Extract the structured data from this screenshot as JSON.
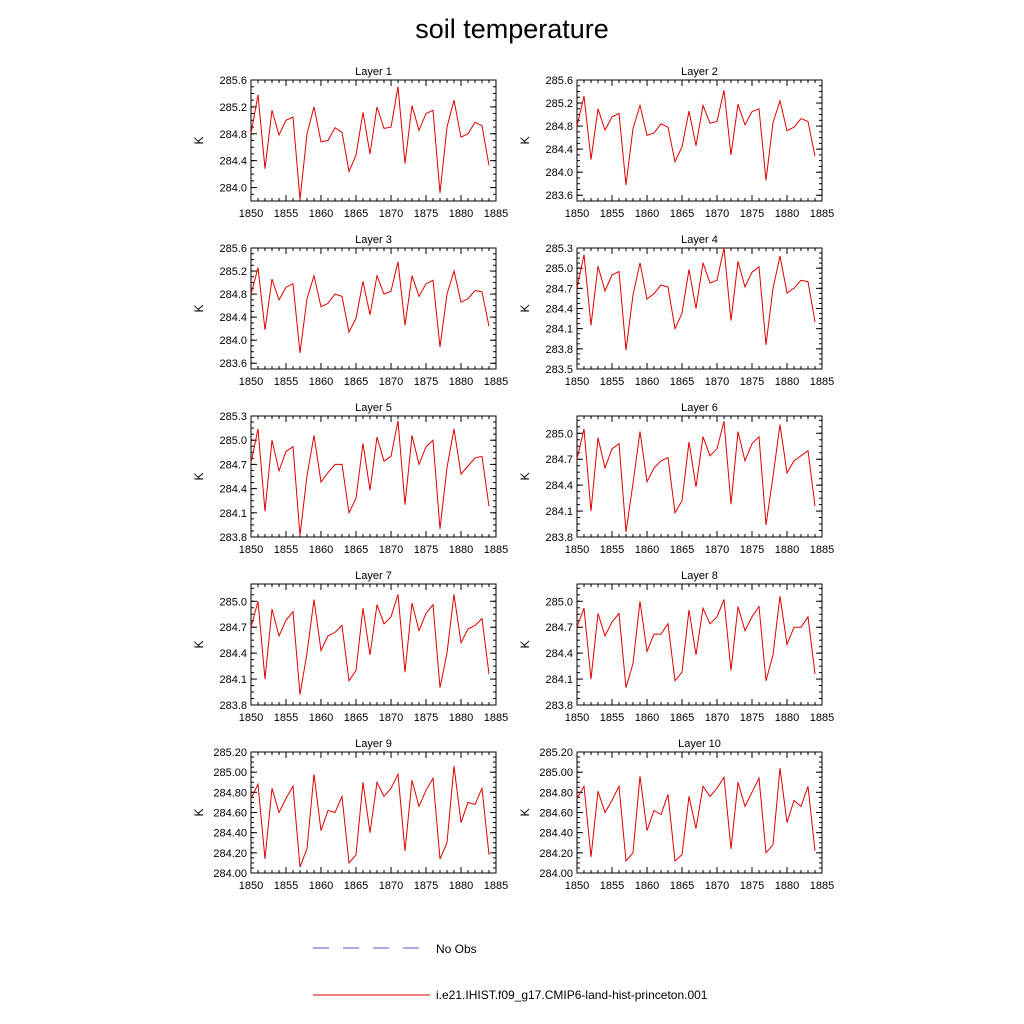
{
  "title": "soil temperature",
  "colors": {
    "model_line": "#e00000",
    "obs_line": "#5555cc",
    "axis": "#000000"
  },
  "legend": [
    {
      "label": "No Obs",
      "style": "dashed",
      "color": "#5555cc"
    },
    {
      "label": "i.e21.IHIST.f09_g17.CMIP6-land-hist-princeton.001",
      "style": "solid",
      "color": "#e00000"
    }
  ],
  "chart_data": [
    {
      "type": "line",
      "title": "Layer 1",
      "ylabel": "K",
      "xlim": [
        1850,
        1885
      ],
      "ylim": [
        283.8,
        285.6
      ],
      "xticks": [
        "1850",
        "1855",
        "1860",
        "1865",
        "1870",
        "1875",
        "1880",
        "1885"
      ],
      "yticks": [
        "284.0",
        "284.4",
        "284.8",
        "285.2",
        "285.6"
      ],
      "x": [
        1850,
        1851,
        1852,
        1853,
        1854,
        1855,
        1856,
        1857,
        1858,
        1859,
        1860,
        1861,
        1862,
        1863,
        1864,
        1865,
        1866,
        1867,
        1868,
        1869,
        1870,
        1871,
        1872,
        1873,
        1874,
        1875,
        1876,
        1877,
        1878,
        1879,
        1880,
        1881,
        1882,
        1883,
        1884
      ],
      "series": [
        {
          "values": [
            284.8,
            285.38,
            284.28,
            285.15,
            284.78,
            285.0,
            285.05,
            283.82,
            284.8,
            285.2,
            284.68,
            284.7,
            284.89,
            284.82,
            284.24,
            284.48,
            285.12,
            284.5,
            285.2,
            284.88,
            284.9,
            285.5,
            284.36,
            285.22,
            284.85,
            285.1,
            285.15,
            283.92,
            284.9,
            285.3,
            284.75,
            284.8,
            284.97,
            284.92,
            284.33
          ]
        }
      ]
    },
    {
      "type": "line",
      "title": "Layer 2",
      "ylabel": "K",
      "xlim": [
        1850,
        1885
      ],
      "ylim": [
        283.5,
        285.6
      ],
      "xticks": [
        "1850",
        "1855",
        "1860",
        "1865",
        "1870",
        "1875",
        "1880",
        "1885"
      ],
      "yticks": [
        "283.6",
        "284.0",
        "284.4",
        "284.8",
        "285.2",
        "285.6"
      ],
      "x": [
        1850,
        1851,
        1852,
        1853,
        1854,
        1855,
        1856,
        1857,
        1858,
        1859,
        1860,
        1861,
        1862,
        1863,
        1864,
        1865,
        1866,
        1867,
        1868,
        1869,
        1870,
        1871,
        1872,
        1873,
        1874,
        1875,
        1876,
        1877,
        1878,
        1879,
        1880,
        1881,
        1882,
        1883,
        1884
      ],
      "series": [
        {
          "values": [
            284.8,
            285.32,
            284.22,
            285.1,
            284.73,
            284.96,
            285.02,
            283.78,
            284.76,
            285.16,
            284.64,
            284.68,
            284.84,
            284.78,
            284.18,
            284.44,
            285.06,
            284.46,
            285.16,
            284.85,
            284.88,
            285.42,
            284.3,
            285.18,
            284.82,
            285.05,
            285.1,
            283.86,
            284.86,
            285.24,
            284.72,
            284.78,
            284.93,
            284.88,
            284.28
          ]
        }
      ]
    },
    {
      "type": "line",
      "title": "Layer 3",
      "ylabel": "K",
      "xlim": [
        1850,
        1885
      ],
      "ylim": [
        283.5,
        285.6
      ],
      "xticks": [
        "1850",
        "1855",
        "1860",
        "1865",
        "1870",
        "1875",
        "1880",
        "1885"
      ],
      "yticks": [
        "283.6",
        "284.0",
        "284.4",
        "284.8",
        "285.2",
        "285.6"
      ],
      "x": [
        1850,
        1851,
        1852,
        1853,
        1854,
        1855,
        1856,
        1857,
        1858,
        1859,
        1860,
        1861,
        1862,
        1863,
        1864,
        1865,
        1866,
        1867,
        1868,
        1869,
        1870,
        1871,
        1872,
        1873,
        1874,
        1875,
        1876,
        1877,
        1878,
        1879,
        1880,
        1881,
        1882,
        1883,
        1884
      ],
      "series": [
        {
          "values": [
            284.8,
            285.26,
            284.18,
            285.06,
            284.7,
            284.92,
            284.98,
            283.78,
            284.72,
            285.12,
            284.58,
            284.64,
            284.8,
            284.76,
            284.14,
            284.38,
            285.02,
            284.44,
            285.12,
            284.8,
            284.85,
            285.36,
            284.26,
            285.12,
            284.76,
            284.98,
            285.04,
            283.88,
            284.8,
            285.2,
            284.66,
            284.72,
            284.86,
            284.84,
            284.24
          ]
        }
      ]
    },
    {
      "type": "line",
      "title": "Layer 4",
      "ylabel": "K",
      "xlim": [
        1850,
        1885
      ],
      "ylim": [
        283.5,
        285.3
      ],
      "xticks": [
        "1850",
        "1855",
        "1860",
        "1865",
        "1870",
        "1875",
        "1880",
        "1885"
      ],
      "yticks": [
        "283.5",
        "283.8",
        "284.1",
        "284.4",
        "284.7",
        "285.0",
        "285.3"
      ],
      "x": [
        1850,
        1851,
        1852,
        1853,
        1854,
        1855,
        1856,
        1857,
        1858,
        1859,
        1860,
        1861,
        1862,
        1863,
        1864,
        1865,
        1866,
        1867,
        1868,
        1869,
        1870,
        1871,
        1872,
        1873,
        1874,
        1875,
        1876,
        1877,
        1878,
        1879,
        1880,
        1881,
        1882,
        1883,
        1884
      ],
      "series": [
        {
          "values": [
            284.7,
            285.2,
            284.15,
            285.03,
            284.66,
            284.9,
            284.95,
            283.78,
            284.6,
            285.08,
            284.54,
            284.62,
            284.75,
            284.72,
            284.1,
            284.33,
            284.98,
            284.4,
            285.08,
            284.78,
            284.82,
            285.3,
            284.22,
            285.1,
            284.72,
            284.94,
            285.02,
            283.86,
            284.7,
            285.18,
            284.63,
            284.7,
            284.82,
            284.8,
            284.2
          ]
        }
      ]
    },
    {
      "type": "line",
      "title": "Layer 5",
      "ylabel": "K",
      "xlim": [
        1850,
        1885
      ],
      "ylim": [
        283.8,
        285.3
      ],
      "xticks": [
        "1850",
        "1855",
        "1860",
        "1865",
        "1870",
        "1875",
        "1880",
        "1885"
      ],
      "yticks": [
        "283.8",
        "284.1",
        "284.4",
        "284.7",
        "285.0",
        "285.3"
      ],
      "x": [
        1850,
        1851,
        1852,
        1853,
        1854,
        1855,
        1856,
        1857,
        1858,
        1859,
        1860,
        1861,
        1862,
        1863,
        1864,
        1865,
        1866,
        1867,
        1868,
        1869,
        1870,
        1871,
        1872,
        1873,
        1874,
        1875,
        1876,
        1877,
        1878,
        1879,
        1880,
        1881,
        1882,
        1883,
        1884
      ],
      "series": [
        {
          "values": [
            284.72,
            285.14,
            284.12,
            285.0,
            284.62,
            284.86,
            284.92,
            283.82,
            284.56,
            285.06,
            284.48,
            284.6,
            284.7,
            284.7,
            284.1,
            284.28,
            284.96,
            284.38,
            285.04,
            284.74,
            284.8,
            285.24,
            284.2,
            285.06,
            284.7,
            284.92,
            285.0,
            283.9,
            284.66,
            285.14,
            284.58,
            284.68,
            284.78,
            284.8,
            284.18
          ]
        }
      ]
    },
    {
      "type": "line",
      "title": "Layer 6",
      "ylabel": "K",
      "xlim": [
        1850,
        1885
      ],
      "ylim": [
        283.8,
        285.2
      ],
      "xticks": [
        "1850",
        "1855",
        "1860",
        "1865",
        "1870",
        "1875",
        "1880",
        "1885"
      ],
      "yticks": [
        "283.8",
        "284.1",
        "284.4",
        "284.7",
        "285.0"
      ],
      "x": [
        1850,
        1851,
        1852,
        1853,
        1854,
        1855,
        1856,
        1857,
        1858,
        1859,
        1860,
        1861,
        1862,
        1863,
        1864,
        1865,
        1866,
        1867,
        1868,
        1869,
        1870,
        1871,
        1872,
        1873,
        1874,
        1875,
        1876,
        1877,
        1878,
        1879,
        1880,
        1881,
        1882,
        1883,
        1884
      ],
      "series": [
        {
          "values": [
            284.7,
            285.05,
            284.1,
            284.95,
            284.6,
            284.82,
            284.88,
            283.86,
            284.42,
            285.02,
            284.44,
            284.6,
            284.68,
            284.72,
            284.08,
            284.22,
            284.9,
            284.38,
            284.96,
            284.74,
            284.82,
            285.14,
            284.18,
            285.02,
            284.68,
            284.88,
            284.96,
            283.94,
            284.5,
            285.1,
            284.54,
            284.68,
            284.74,
            284.8,
            284.16
          ]
        }
      ]
    },
    {
      "type": "line",
      "title": "Layer 7",
      "ylabel": "K",
      "xlim": [
        1850,
        1885
      ],
      "ylim": [
        283.8,
        285.2
      ],
      "xticks": [
        "1850",
        "1855",
        "1860",
        "1865",
        "1870",
        "1875",
        "1880",
        "1885"
      ],
      "yticks": [
        "283.8",
        "284.1",
        "284.4",
        "284.7",
        "285.0"
      ],
      "x": [
        1850,
        1851,
        1852,
        1853,
        1854,
        1855,
        1856,
        1857,
        1858,
        1859,
        1860,
        1861,
        1862,
        1863,
        1864,
        1865,
        1866,
        1867,
        1868,
        1869,
        1870,
        1871,
        1872,
        1873,
        1874,
        1875,
        1876,
        1877,
        1878,
        1879,
        1880,
        1881,
        1882,
        1883,
        1884
      ],
      "series": [
        {
          "values": [
            284.7,
            285.0,
            284.1,
            284.91,
            284.6,
            284.78,
            284.88,
            283.92,
            284.4,
            285.02,
            284.43,
            284.6,
            284.64,
            284.72,
            284.08,
            284.2,
            284.92,
            284.38,
            284.96,
            284.74,
            284.82,
            285.08,
            284.18,
            284.98,
            284.66,
            284.86,
            284.96,
            284.0,
            284.4,
            285.08,
            284.52,
            284.68,
            284.72,
            284.8,
            284.16
          ]
        }
      ]
    },
    {
      "type": "line",
      "title": "Layer 8",
      "ylabel": "K",
      "xlim": [
        1850,
        1885
      ],
      "ylim": [
        283.8,
        285.2
      ],
      "xticks": [
        "1850",
        "1855",
        "1860",
        "1865",
        "1870",
        "1875",
        "1880",
        "1885"
      ],
      "yticks": [
        "283.8",
        "284.1",
        "284.4",
        "284.7",
        "285.0"
      ],
      "x": [
        1850,
        1851,
        1852,
        1853,
        1854,
        1855,
        1856,
        1857,
        1858,
        1859,
        1860,
        1861,
        1862,
        1863,
        1864,
        1865,
        1866,
        1867,
        1868,
        1869,
        1870,
        1871,
        1872,
        1873,
        1874,
        1875,
        1876,
        1877,
        1878,
        1879,
        1880,
        1881,
        1882,
        1883,
        1884
      ],
      "series": [
        {
          "values": [
            284.7,
            284.92,
            284.1,
            284.86,
            284.6,
            284.76,
            284.86,
            284.0,
            284.28,
            285.0,
            284.42,
            284.62,
            284.62,
            284.74,
            284.08,
            284.18,
            284.9,
            284.38,
            284.92,
            284.74,
            284.82,
            285.02,
            284.2,
            284.94,
            284.66,
            284.82,
            284.94,
            284.08,
            284.38,
            285.06,
            284.5,
            284.7,
            284.7,
            284.82,
            284.16
          ]
        }
      ]
    },
    {
      "type": "line",
      "title": "Layer 9",
      "ylabel": "K",
      "xlim": [
        1850,
        1885
      ],
      "ylim": [
        284.0,
        285.2
      ],
      "xticks": [
        "1850",
        "1855",
        "1860",
        "1865",
        "1870",
        "1875",
        "1880",
        "1885"
      ],
      "yticks": [
        "284.00",
        "284.20",
        "284.40",
        "284.60",
        "284.80",
        "285.00",
        "285.20"
      ],
      "x": [
        1850,
        1851,
        1852,
        1853,
        1854,
        1855,
        1856,
        1857,
        1858,
        1859,
        1860,
        1861,
        1862,
        1863,
        1864,
        1865,
        1866,
        1867,
        1868,
        1869,
        1870,
        1871,
        1872,
        1873,
        1874,
        1875,
        1876,
        1877,
        1878,
        1879,
        1880,
        1881,
        1882,
        1883,
        1884
      ],
      "series": [
        {
          "values": [
            284.74,
            284.88,
            284.14,
            284.84,
            284.6,
            284.74,
            284.86,
            284.06,
            284.24,
            284.98,
            284.42,
            284.62,
            284.6,
            284.76,
            284.1,
            284.18,
            284.9,
            284.4,
            284.9,
            284.76,
            284.84,
            284.98,
            284.22,
            284.92,
            284.66,
            284.82,
            284.94,
            284.14,
            284.3,
            285.06,
            284.5,
            284.7,
            284.68,
            284.84,
            284.18
          ]
        }
      ]
    },
    {
      "type": "line",
      "title": "Layer 10",
      "ylabel": "K",
      "xlim": [
        1850,
        1885
      ],
      "ylim": [
        284.0,
        285.2
      ],
      "xticks": [
        "1850",
        "1855",
        "1860",
        "1865",
        "1870",
        "1875",
        "1880",
        "1885"
      ],
      "yticks": [
        "284.00",
        "284.20",
        "284.40",
        "284.60",
        "284.80",
        "285.00",
        "285.20"
      ],
      "x": [
        1850,
        1851,
        1852,
        1853,
        1854,
        1855,
        1856,
        1857,
        1858,
        1859,
        1860,
        1861,
        1862,
        1863,
        1864,
        1865,
        1866,
        1867,
        1868,
        1869,
        1870,
        1871,
        1872,
        1873,
        1874,
        1875,
        1876,
        1877,
        1878,
        1879,
        1880,
        1881,
        1882,
        1883,
        1884
      ],
      "series": [
        {
          "values": [
            284.74,
            284.86,
            284.16,
            284.81,
            284.6,
            284.72,
            284.86,
            284.12,
            284.2,
            284.96,
            284.42,
            284.62,
            284.58,
            284.78,
            284.12,
            284.18,
            284.76,
            284.44,
            284.86,
            284.76,
            284.84,
            284.95,
            284.24,
            284.9,
            284.66,
            284.8,
            284.94,
            284.2,
            284.28,
            285.04,
            284.5,
            284.72,
            284.66,
            284.86,
            284.22
          ]
        }
      ]
    }
  ]
}
